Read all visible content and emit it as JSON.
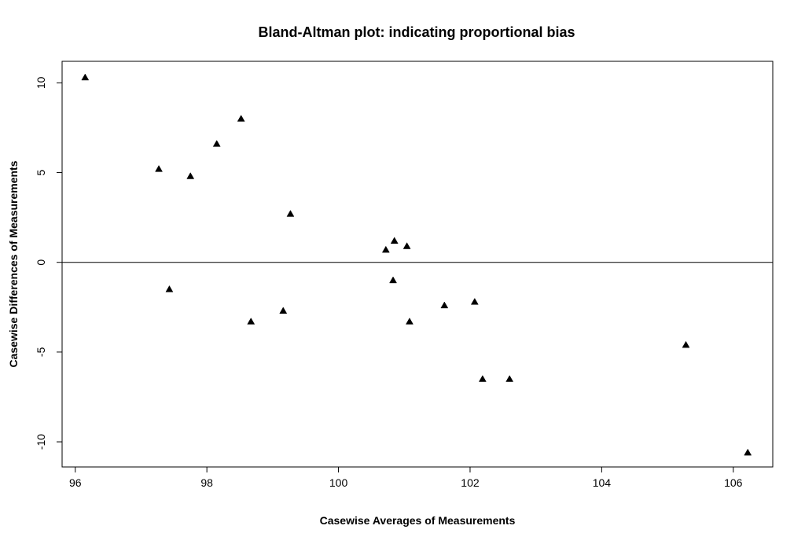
{
  "chart_data": {
    "type": "scatter",
    "title": "Bland-Altman plot: indicating proportional bias",
    "xlabel": "Casewise Averages of Measurements",
    "ylabel": "Casewise Differences of Measurements",
    "xlim": [
      95.8,
      106.6
    ],
    "ylim": [
      -11.4,
      11.2
    ],
    "xticks": [
      96,
      98,
      100,
      102,
      104,
      106
    ],
    "yticks": [
      -10,
      -5,
      0,
      5,
      10
    ],
    "xtick_labels": [
      "96",
      "98",
      "100",
      "102",
      "104",
      "106"
    ],
    "ytick_labels": [
      "-10",
      "-5",
      "0",
      "5",
      "10"
    ],
    "reference_line_y": 0,
    "grid": false,
    "marker": "filled-triangle",
    "points": [
      {
        "x": 96.15,
        "y": 10.3
      },
      {
        "x": 97.27,
        "y": 5.2
      },
      {
        "x": 97.43,
        "y": -1.5
      },
      {
        "x": 97.75,
        "y": 4.8
      },
      {
        "x": 98.15,
        "y": 6.6
      },
      {
        "x": 98.52,
        "y": 8.0
      },
      {
        "x": 98.67,
        "y": -3.3
      },
      {
        "x": 99.16,
        "y": -2.7
      },
      {
        "x": 99.27,
        "y": 2.7
      },
      {
        "x": 100.72,
        "y": 0.7
      },
      {
        "x": 100.83,
        "y": -1.0
      },
      {
        "x": 100.85,
        "y": 1.2
      },
      {
        "x": 101.04,
        "y": 0.9
      },
      {
        "x": 101.08,
        "y": -3.3
      },
      {
        "x": 101.61,
        "y": -2.4
      },
      {
        "x": 102.07,
        "y": -2.2
      },
      {
        "x": 102.19,
        "y": -6.5
      },
      {
        "x": 102.6,
        "y": -6.5
      },
      {
        "x": 105.28,
        "y": -4.6
      },
      {
        "x": 106.22,
        "y": -10.6
      }
    ]
  }
}
